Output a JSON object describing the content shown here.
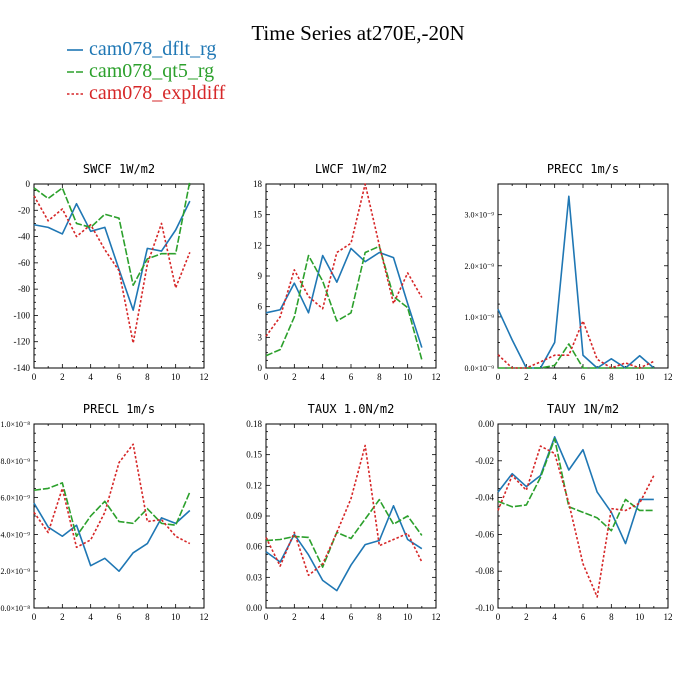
{
  "figure": {
    "title": "Time Series at270E,-20N",
    "legend": [
      {
        "name": "cam078_dflt_rg",
        "color": "#1f77b4",
        "dash": "solid"
      },
      {
        "name": "cam078_qt5_rg",
        "color": "#2ca02c",
        "dash": "longdash"
      },
      {
        "name": "cam078_expldiff",
        "color": "#d62728",
        "dash": "dotted"
      }
    ]
  },
  "chart_data": [
    {
      "type": "line",
      "title": "SWCF   1W/m2",
      "x": [
        0,
        1,
        2,
        3,
        4,
        5,
        6,
        7,
        8,
        9,
        10,
        11
      ],
      "xlim": [
        0,
        12
      ],
      "ylim": [
        -140,
        0
      ],
      "xticks": [
        "0",
        "2",
        "4",
        "6",
        "8",
        "10",
        "12"
      ],
      "yticks": [
        "-140",
        "-120",
        "-100",
        "-80",
        "-60",
        "-40",
        "-20",
        "0"
      ],
      "series": [
        {
          "name": "cam078_dflt_rg",
          "values": [
            -31,
            -33,
            -38,
            -15,
            -36,
            -33,
            -65,
            -96,
            -49,
            -51,
            -35,
            -13
          ]
        },
        {
          "name": "cam078_qt5_rg",
          "values": [
            -3,
            -11,
            -3,
            -30,
            -33,
            -23,
            -26,
            -77,
            -57,
            -53,
            -53,
            2
          ]
        },
        {
          "name": "cam078_expldiff",
          "values": [
            -9,
            -28,
            -19,
            -40,
            -31,
            -50,
            -66,
            -121,
            -61,
            -30,
            -79,
            -52
          ]
        }
      ]
    },
    {
      "type": "line",
      "title": "LWCF   1W/m2",
      "x": [
        0,
        1,
        2,
        3,
        4,
        5,
        6,
        7,
        8,
        9,
        10,
        11
      ],
      "xlim": [
        0,
        12
      ],
      "ylim": [
        0,
        18
      ],
      "xticks": [
        "0",
        "2",
        "4",
        "6",
        "8",
        "10",
        "12"
      ],
      "yticks": [
        "0",
        "3",
        "6",
        "9",
        "12",
        "15",
        "18"
      ],
      "series": [
        {
          "name": "cam078_dflt_rg",
          "values": [
            5.4,
            5.7,
            8.3,
            5.4,
            11.0,
            8.4,
            11.7,
            10.4,
            11.3,
            10.8,
            6.3,
            2.0
          ]
        },
        {
          "name": "cam078_qt5_rg",
          "values": [
            1.2,
            1.8,
            5.0,
            11.0,
            8.5,
            4.6,
            5.4,
            11.3,
            11.9,
            7.0,
            5.9,
            0.8
          ]
        },
        {
          "name": "cam078_expldiff",
          "values": [
            3.1,
            5.0,
            9.6,
            7.0,
            5.8,
            11.3,
            12.2,
            18.0,
            12.0,
            6.3,
            9.3,
            6.9
          ]
        }
      ]
    },
    {
      "type": "line",
      "title": "PRECC   1m/s",
      "x": [
        0,
        1,
        2,
        3,
        4,
        5,
        6,
        7,
        8,
        9,
        10,
        11
      ],
      "xlim": [
        0,
        12
      ],
      "ylim": [
        0,
        3.6e-09
      ],
      "xticks": [
        "0",
        "2",
        "4",
        "6",
        "8",
        "10",
        "12"
      ],
      "yticks": [
        "0.0×10⁻⁹",
        "1.0×10⁻⁹",
        "2.0×10⁻⁹",
        "3.0×10⁻⁹"
      ],
      "series": [
        {
          "name": "cam078_dflt_rg",
          "values": [
            1.15e-09,
            5.5e-10,
            0,
            0,
            5e-10,
            3.36e-09,
            2.5e-10,
            0,
            1.8e-10,
            0,
            2.4e-10,
            0
          ]
        },
        {
          "name": "cam078_qt5_rg",
          "values": [
            0,
            0,
            0,
            0,
            5e-11,
            4.7e-10,
            0,
            0,
            0,
            0,
            0,
            0
          ]
        },
        {
          "name": "cam078_expldiff",
          "values": [
            2.6e-10,
            0,
            0,
            1.2e-10,
            2.5e-10,
            2.5e-10,
            9.2e-10,
            1.7e-10,
            0,
            1e-10,
            0,
            1.3e-10
          ]
        }
      ]
    },
    {
      "type": "line",
      "title": "PRECL   1m/s",
      "x": [
        0,
        1,
        2,
        3,
        4,
        5,
        6,
        7,
        8,
        9,
        10,
        11
      ],
      "xlim": [
        0,
        12
      ],
      "ylim": [
        0,
        1e-08
      ],
      "xticks": [
        "0",
        "2",
        "4",
        "6",
        "8",
        "10",
        "12"
      ],
      "yticks": [
        "0.0×10⁻⁸",
        "2.0×10⁻⁹",
        "4.0×10⁻⁹",
        "6.0×10⁻⁹",
        "8.0×10⁻⁹",
        "1.0×10⁻⁸"
      ],
      "series": [
        {
          "name": "cam078_dflt_rg",
          "values": [
            5.7e-09,
            4.4e-09,
            3.9e-09,
            4.5e-09,
            2.3e-09,
            2.7e-09,
            2e-09,
            3e-09,
            3.5e-09,
            4.9e-09,
            4.6e-09,
            5.3e-09
          ]
        },
        {
          "name": "cam078_qt5_rg",
          "values": [
            6.4e-09,
            6.5e-09,
            6.8e-09,
            3.9e-09,
            5e-09,
            5.8e-09,
            4.7e-09,
            4.6e-09,
            5.4e-09,
            4.6e-09,
            4.5e-09,
            6.3e-09
          ]
        },
        {
          "name": "cam078_expldiff",
          "values": [
            5.2e-09,
            4.1e-09,
            6.5e-09,
            3.3e-09,
            3.7e-09,
            5.2e-09,
            7.9e-09,
            8.9e-09,
            4.7e-09,
            4.8e-09,
            3.9e-09,
            3.5e-09
          ]
        }
      ]
    },
    {
      "type": "line",
      "title": "TAUX   1.0N/m2",
      "x": [
        0,
        1,
        2,
        3,
        4,
        5,
        6,
        7,
        8,
        9,
        10,
        11
      ],
      "xlim": [
        0,
        12
      ],
      "ylim": [
        0,
        0.18
      ],
      "xticks": [
        "0",
        "2",
        "4",
        "6",
        "8",
        "10",
        "12"
      ],
      "yticks": [
        "0.00",
        "0.03",
        "0.06",
        "0.09",
        "0.12",
        "0.15",
        "0.18"
      ],
      "series": [
        {
          "name": "cam078_dflt_rg",
          "values": [
            0.055,
            0.045,
            0.072,
            0.052,
            0.027,
            0.017,
            0.042,
            0.062,
            0.066,
            0.1,
            0.067,
            0.058
          ]
        },
        {
          "name": "cam078_qt5_rg",
          "values": [
            0.066,
            0.067,
            0.07,
            0.069,
            0.04,
            0.074,
            0.068,
            0.087,
            0.106,
            0.082,
            0.09,
            0.071
          ]
        },
        {
          "name": "cam078_expldiff",
          "values": [
            0.069,
            0.041,
            0.074,
            0.032,
            0.043,
            0.074,
            0.107,
            0.159,
            0.061,
            0.067,
            0.073,
            0.045
          ]
        }
      ]
    },
    {
      "type": "line",
      "title": "TAUY   1N/m2",
      "x": [
        0,
        1,
        2,
        3,
        4,
        5,
        6,
        7,
        8,
        9,
        10,
        11
      ],
      "xlim": [
        0,
        12
      ],
      "ylim": [
        -0.1,
        0.0
      ],
      "xticks": [
        "0",
        "2",
        "4",
        "6",
        "8",
        "10",
        "12"
      ],
      "yticks": [
        "-0.10",
        "-0.08",
        "-0.06",
        "-0.04",
        "-0.02",
        "0.00"
      ],
      "series": [
        {
          "name": "cam078_dflt_rg",
          "values": [
            -0.037,
            -0.027,
            -0.034,
            -0.028,
            -0.007,
            -0.025,
            -0.014,
            -0.037,
            -0.048,
            -0.065,
            -0.041,
            -0.041
          ]
        },
        {
          "name": "cam078_qt5_rg",
          "values": [
            -0.042,
            -0.045,
            -0.044,
            -0.029,
            -0.008,
            -0.045,
            -0.048,
            -0.051,
            -0.058,
            -0.041,
            -0.047,
            -0.047
          ]
        },
        {
          "name": "cam078_expldiff",
          "values": [
            -0.047,
            -0.028,
            -0.036,
            -0.012,
            -0.016,
            -0.043,
            -0.076,
            -0.094,
            -0.046,
            -0.047,
            -0.043,
            -0.028
          ]
        }
      ]
    }
  ]
}
